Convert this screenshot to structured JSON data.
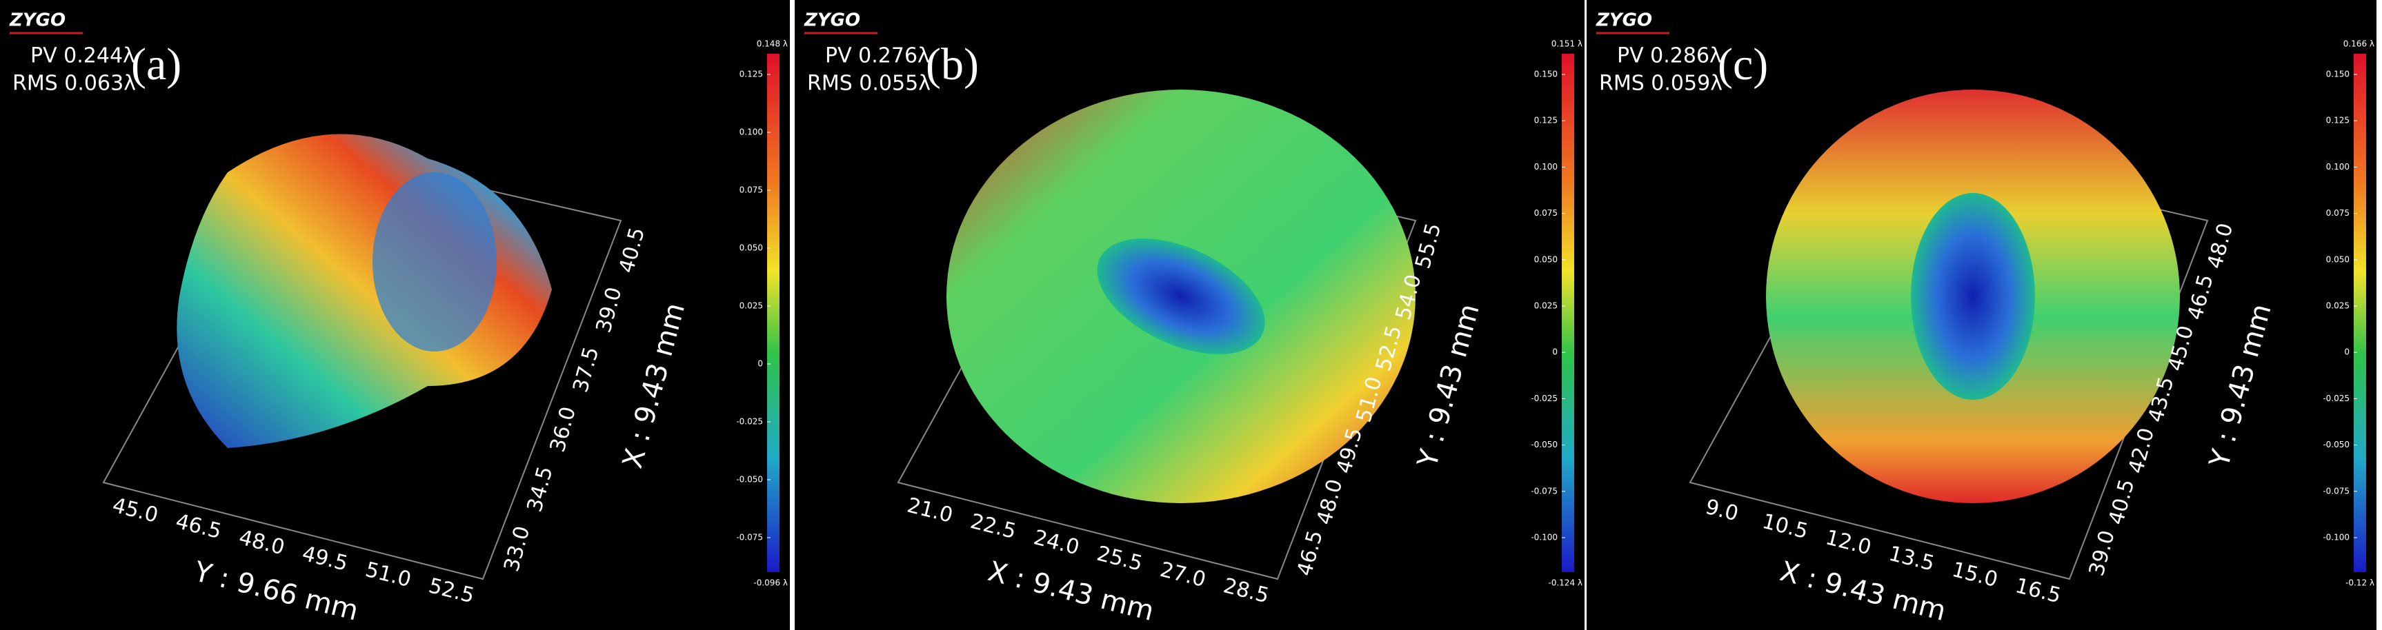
{
  "panels": [
    {
      "label": "(a)",
      "logo": "ZYGO",
      "pv": "PV 0.244λ",
      "rms": "RMS 0.063λ",
      "colorbar": {
        "max": "0.148 λ",
        "min": "-0.096 λ",
        "ticks": [
          "0.125",
          "0.100",
          "0.075",
          "0.050",
          "0.025",
          "0",
          "-0.025",
          "-0.050",
          "-0.075"
        ]
      },
      "bottom_axis": {
        "title": "Y : 9.66 mm",
        "ticks": [
          "45.0",
          "46.5",
          "48.0",
          "49.5",
          "51.0",
          "52.5"
        ]
      },
      "side_axis": {
        "title": "X : 9.43 mm",
        "ticks": [
          "33.0",
          "34.5",
          "36.0",
          "37.5",
          "39.0",
          "40.5"
        ]
      }
    },
    {
      "label": "(b)",
      "logo": "ZYGO",
      "pv": "PV 0.276λ",
      "rms": "RMS 0.055λ",
      "colorbar": {
        "max": "0.151 λ",
        "min": "-0.124 λ",
        "ticks": [
          "0.150",
          "0.125",
          "0.100",
          "0.075",
          "0.050",
          "0.025",
          "0",
          "-0.025",
          "-0.050",
          "-0.075",
          "-0.100"
        ]
      },
      "bottom_axis": {
        "title": "X : 9.43 mm",
        "ticks": [
          "21.0",
          "22.5",
          "24.0",
          "25.5",
          "27.0",
          "28.5"
        ]
      },
      "side_axis": {
        "title": "Y : 9.43 mm",
        "ticks": [
          "46.5",
          "48.0",
          "49.5",
          "51.0",
          "52.5",
          "54.0",
          "55.5"
        ]
      }
    },
    {
      "label": "(c)",
      "logo": "ZYGO",
      "pv": "PV 0.286λ",
      "rms": "RMS 0.059λ",
      "colorbar": {
        "max": "0.166 λ",
        "min": "-0.12 λ",
        "ticks": [
          "0.150",
          "0.125",
          "0.100",
          "0.075",
          "0.050",
          "0.025",
          "0",
          "-0.025",
          "-0.050",
          "-0.075",
          "-0.100"
        ]
      },
      "bottom_axis": {
        "title": "X : 9.43 mm",
        "ticks": [
          "9.0",
          "10.5",
          "12.0",
          "13.5",
          "15.0",
          "16.5"
        ]
      },
      "side_axis": {
        "title": "Y : 9.43 mm",
        "ticks": [
          "39.0",
          "40.5",
          "42.0",
          "43.5",
          "45.0",
          "46.5",
          "48.0"
        ]
      }
    }
  ]
}
